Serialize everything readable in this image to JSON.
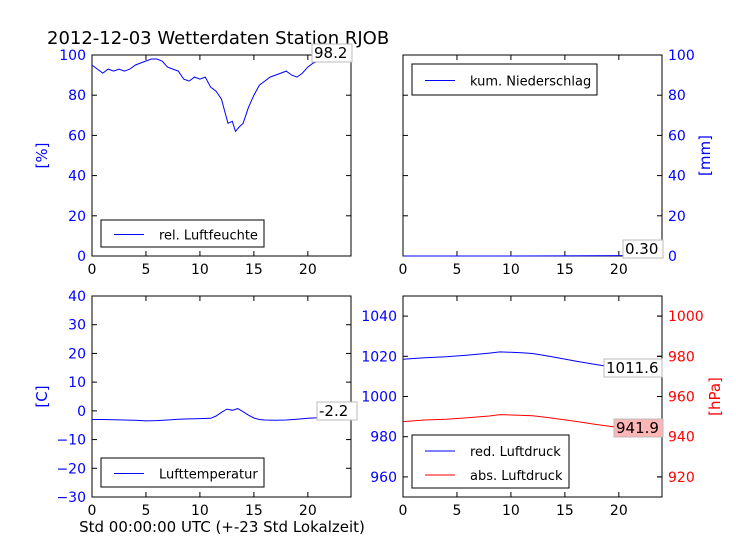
{
  "title": "2012-12-03 Wetterdaten Station RJOB",
  "xlabel": "Std 00:00:00 UTC (+-23 Std Lokalzeit)",
  "colors": {
    "blue": "#0000ff",
    "red": "#ff0000",
    "black": "#000000",
    "label_bg_red": "#ffb6b6"
  },
  "chart_data": [
    {
      "type": "line",
      "ylabel": "[%]",
      "xlim": [
        0,
        24
      ],
      "ylim": [
        0,
        100
      ],
      "xticks": [
        "0",
        "5",
        "10",
        "15",
        "20"
      ],
      "yticks": [
        "0",
        "20",
        "40",
        "60",
        "80",
        "100"
      ],
      "legend": "bottom-left",
      "last_value_label": "98.2",
      "series": [
        {
          "name": "rel. Luftfeuchte",
          "color": "#0000ff",
          "x": [
            0,
            0.5,
            1,
            1.5,
            2,
            2.5,
            3,
            3.5,
            4,
            4.5,
            5,
            5.5,
            6,
            6.5,
            7,
            7.5,
            8,
            8.5,
            9,
            9.5,
            10,
            10.5,
            11,
            11.5,
            12,
            12.3,
            12.6,
            13,
            13.3,
            13.6,
            14,
            14.5,
            15,
            15.5,
            16,
            16.5,
            17,
            17.5,
            18,
            18.5,
            19,
            19.5,
            20,
            20.5,
            21,
            21.5,
            22,
            22.5,
            23,
            23.5,
            24
          ],
          "y": [
            95,
            93,
            91,
            93,
            92,
            93,
            92,
            93,
            95,
            96,
            97,
            98,
            98,
            97,
            94,
            93,
            92,
            88,
            87,
            89,
            88,
            89,
            84,
            82,
            78,
            72,
            66,
            67,
            62,
            64,
            66,
            74,
            80,
            85,
            87,
            89,
            90,
            91,
            92,
            90,
            89,
            91,
            94,
            96,
            97,
            97,
            98,
            98,
            98,
            98.2,
            98.2
          ]
        }
      ]
    },
    {
      "type": "line",
      "ylabel": "[mm]",
      "xlim": [
        0,
        24
      ],
      "ylim": [
        0,
        100
      ],
      "xticks": [
        "0",
        "5",
        "10",
        "15",
        "20"
      ],
      "yticks": [
        "0",
        "20",
        "40",
        "60",
        "80",
        "100"
      ],
      "yaxis_side": "right",
      "legend": "top-left",
      "last_value_label": "0.30",
      "series": [
        {
          "name": "kum. Niederschlag",
          "color": "#0000ff",
          "x": [
            0,
            5,
            10,
            14,
            17,
            20,
            22,
            24
          ],
          "y": [
            0,
            0,
            0,
            0.05,
            0.1,
            0.2,
            0.3,
            0.3
          ]
        }
      ]
    },
    {
      "type": "line",
      "ylabel": "[C]",
      "xlim": [
        0,
        24
      ],
      "ylim": [
        -30,
        40
      ],
      "xticks": [
        "0",
        "5",
        "10",
        "15",
        "20"
      ],
      "yticks": [
        "−30",
        "−20",
        "−10",
        "0",
        "10",
        "20",
        "30",
        "40"
      ],
      "yvalues": [
        -30,
        -20,
        -10,
        0,
        10,
        20,
        30,
        40
      ],
      "legend": "bottom-left",
      "last_value_label": "-2.2",
      "series": [
        {
          "name": "Lufttemperatur",
          "color": "#0000ff",
          "x": [
            0,
            1,
            2,
            3,
            4,
            5,
            6,
            7,
            8,
            9,
            10,
            11,
            11.5,
            12,
            12.5,
            13,
            13.5,
            14,
            14.5,
            15,
            15.5,
            16,
            17,
            18,
            19,
            20,
            21,
            22,
            23,
            24
          ],
          "y": [
            -3,
            -3,
            -3.1,
            -3.2,
            -3.3,
            -3.5,
            -3.4,
            -3.2,
            -2.9,
            -2.8,
            -2.7,
            -2.6,
            -1.8,
            -0.5,
            0.6,
            0.2,
            0.8,
            -0.3,
            -1.5,
            -2.5,
            -3,
            -3.2,
            -3.3,
            -3.2,
            -2.9,
            -2.6,
            -2.4,
            -2.3,
            -2.2,
            -2.2
          ]
        }
      ]
    },
    {
      "type": "line",
      "ylabel": "[hPa]",
      "xlim": [
        0,
        24
      ],
      "ylim": [
        950,
        1050
      ],
      "ylim_right": [
        910,
        1010
      ],
      "xticks": [
        "0",
        "5",
        "10",
        "15",
        "20"
      ],
      "yticks": [
        "960",
        "980",
        "1000",
        "1020",
        "1040"
      ],
      "yvalues": [
        960,
        980,
        1000,
        1020,
        1040
      ],
      "yticks_right": [
        "920",
        "940",
        "960",
        "980",
        "1000"
      ],
      "yvalues_right": [
        920,
        940,
        960,
        980,
        1000
      ],
      "legend": "bottom-left",
      "series": [
        {
          "name": "red. Luftdruck",
          "color": "#0000ff",
          "axis": "left",
          "x": [
            0,
            2,
            4,
            6,
            8,
            9,
            10,
            11,
            12,
            13,
            14,
            16,
            18,
            20,
            22,
            24
          ],
          "y": [
            1018.5,
            1019.3,
            1019.8,
            1020.6,
            1021.6,
            1022.2,
            1022.0,
            1021.8,
            1021.4,
            1020.5,
            1019.6,
            1017.6,
            1015.8,
            1014.2,
            1012.6,
            1011.6
          ],
          "last_value_label": "1011.6"
        },
        {
          "name": "abs. Luftdruck",
          "color": "#ff0000",
          "axis": "right",
          "x": [
            0,
            2,
            4,
            6,
            8,
            9,
            10,
            11,
            12,
            13,
            14,
            16,
            18,
            20,
            22,
            24
          ],
          "y": [
            947.5,
            948.3,
            948.7,
            949.4,
            950.3,
            951.0,
            950.8,
            950.6,
            950.4,
            949.8,
            949.1,
            947.6,
            946.0,
            944.6,
            943.0,
            941.9
          ],
          "last_value_label": "941.9"
        }
      ]
    }
  ]
}
